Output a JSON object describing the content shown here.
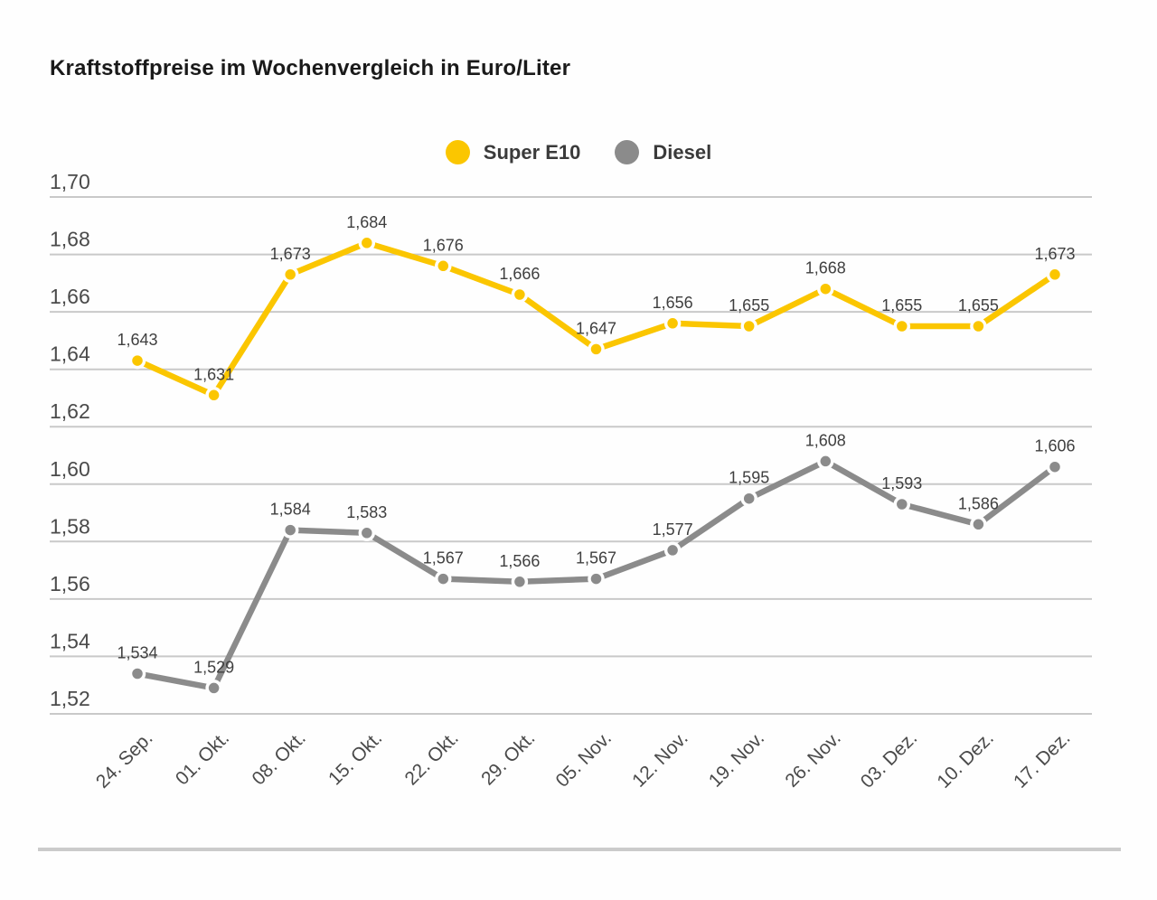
{
  "title": "Kraftstoffpreise im Wochenvergleich in Euro/Liter",
  "legend": [
    {
      "label": "Super E10",
      "color": "#FBC600"
    },
    {
      "label": "Diesel",
      "color": "#8B8B8B"
    }
  ],
  "chart_data": {
    "type": "line",
    "title": "Kraftstoffpreise im Wochenvergleich in Euro/Liter",
    "unit": "Euro/Liter",
    "categories": [
      "24. Sep.",
      "01. Okt.",
      "08. Okt.",
      "15. Okt.",
      "22. Okt.",
      "29. Okt.",
      "05. Nov.",
      "12. Nov.",
      "19. Nov.",
      "26. Nov.",
      "03. Dez.",
      "10. Dez.",
      "17. Dez."
    ],
    "series": [
      {
        "name": "Super E10",
        "color": "#FBC600",
        "values": [
          1.643,
          1.631,
          1.673,
          1.684,
          1.676,
          1.666,
          1.647,
          1.656,
          1.655,
          1.668,
          1.655,
          1.655,
          1.673
        ],
        "labels": [
          "1,643",
          "1,631",
          "1,673",
          "1,684",
          "1,676",
          "1,666",
          "1,647",
          "1,656",
          "1,655",
          "1,668",
          "1,655",
          "1,655",
          "1,673"
        ]
      },
      {
        "name": "Diesel",
        "color": "#8B8B8B",
        "values": [
          1.534,
          1.529,
          1.584,
          1.583,
          1.567,
          1.566,
          1.567,
          1.577,
          1.595,
          1.608,
          1.593,
          1.586,
          1.606
        ],
        "labels": [
          "1,534",
          "1,529",
          "1,584",
          "1,583",
          "1,567",
          "1,566",
          "1,567",
          "1,577",
          "1,595",
          "1,608",
          "1,593",
          "1,586",
          "1,606"
        ]
      }
    ],
    "yticks": {
      "values": [
        1.7,
        1.68,
        1.66,
        1.64,
        1.62,
        1.6,
        1.58,
        1.56,
        1.54,
        1.52
      ],
      "labels": [
        "1,70",
        "1,68",
        "1,66",
        "1,64",
        "1,62",
        "1,60",
        "1,58",
        "1,56",
        "1,54",
        "1,52"
      ]
    },
    "ylim": [
      1.52,
      1.7
    ],
    "grid": "horizontal",
    "legend_position": "top-center",
    "style": {
      "grid_color": "#C9C9C9",
      "axis_text_color": "#4A4A4A",
      "point_label_color": "#3F3F3F",
      "background": "#FEFEFE"
    }
  }
}
